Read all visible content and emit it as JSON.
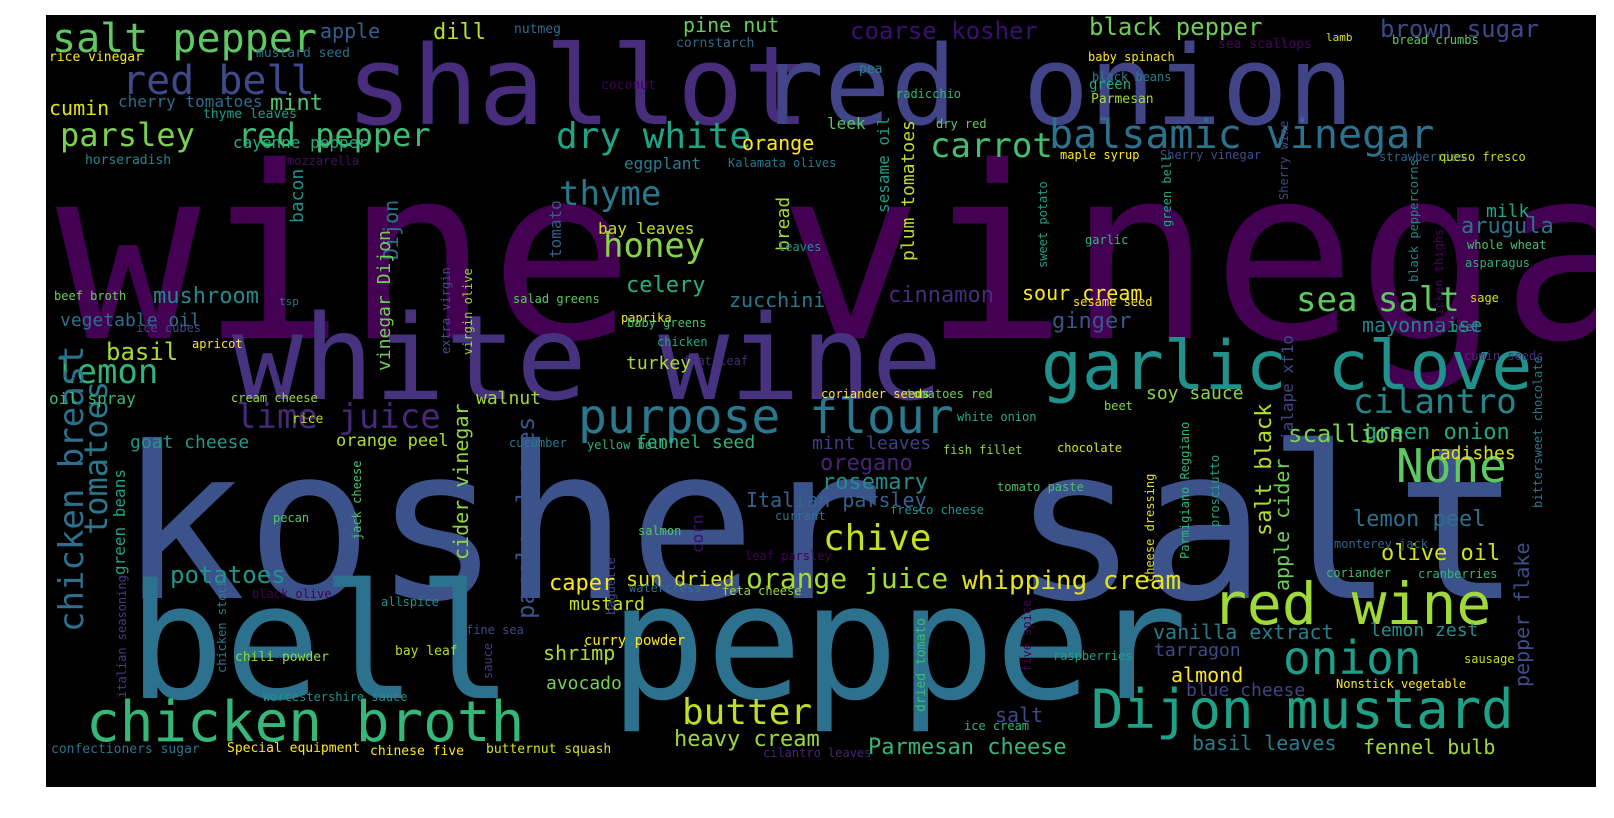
{
  "words": [
    {
      "t": "wine vinegar",
      "c": "#440154"
    },
    {
      "t": "kosher salt",
      "c": "#3b528b"
    },
    {
      "t": "bell pepper",
      "c": "#2c728e"
    },
    {
      "t": "white wine",
      "c": "#46327e"
    },
    {
      "t": "shallot",
      "c": "#472d7b"
    },
    {
      "t": "red onion",
      "c": "#414487"
    },
    {
      "t": "garlic clove",
      "c": "#21918c"
    },
    {
      "t": "red wine",
      "c": "#a0da39"
    },
    {
      "t": "chicken broth",
      "c": "#35b779"
    },
    {
      "t": "Dijon mustard",
      "c": "#1fa187"
    },
    {
      "t": "purpose flour",
      "c": "#2a788e"
    },
    {
      "t": "None",
      "c": "#5ec962"
    },
    {
      "t": "onion",
      "c": "#1f9e89"
    },
    {
      "t": "salt pepper",
      "c": "#5ec962"
    },
    {
      "t": "red bell",
      "c": "#3e4a89"
    },
    {
      "t": "balsamic vinegar",
      "c": "#2c728e"
    },
    {
      "t": "parsley",
      "c": "#7ad151"
    },
    {
      "t": "red pepper",
      "c": "#3fbc73"
    },
    {
      "t": "dry white",
      "c": "#20a486"
    },
    {
      "t": "butter",
      "c": "#bddf26"
    },
    {
      "t": "chive",
      "c": "#c2df23"
    },
    {
      "t": "lemon",
      "c": "#2fb47c"
    },
    {
      "t": "lime juice",
      "c": "#482878"
    },
    {
      "t": "sea salt",
      "c": "#5ec962"
    },
    {
      "t": "cilantro",
      "c": "#25858e"
    },
    {
      "t": "honey",
      "c": "#86d549"
    },
    {
      "t": "thyme",
      "c": "#2a788e"
    },
    {
      "t": "carrot",
      "c": "#44bf70"
    },
    {
      "t": "orange juice",
      "c": "#a5db36"
    },
    {
      "t": "whipping cream",
      "c": "#e5e419"
    },
    {
      "t": "heavy cream",
      "c": "#9bd93c"
    },
    {
      "t": "Parmesan cheese",
      "c": "#35b779"
    },
    {
      "t": "chicken breast",
      "c": "#2e6e8e"
    },
    {
      "t": "tomatoes",
      "c": "#29798e"
    },
    {
      "t": "green onion",
      "c": "#22a785"
    },
    {
      "t": "scallion",
      "c": "#7ad151"
    },
    {
      "t": "rosemary",
      "c": "#228d8d"
    },
    {
      "t": "lemon peel",
      "c": "#2d718e"
    },
    {
      "t": "potatoes",
      "c": "#1f958b"
    },
    {
      "t": "mushroom",
      "c": "#23898e"
    },
    {
      "t": "celery",
      "c": "#29af7f"
    },
    {
      "t": "cinnamon",
      "c": "#472c7a"
    },
    {
      "t": "sour cream",
      "c": "#fde725"
    },
    {
      "t": "basil",
      "c": "#a8db34"
    },
    {
      "t": "black pepper",
      "c": "#6ece58"
    },
    {
      "t": "coarse kosher",
      "c": "#3b0f70"
    },
    {
      "t": "brown sugar",
      "c": "#3e4989"
    },
    {
      "t": "parsley leaves",
      "c": "#3b528b"
    },
    {
      "t": "cider vinegar",
      "c": "#90d743"
    },
    {
      "t": "mint",
      "c": "#52c569"
    },
    {
      "t": "dill",
      "c": "#bade28"
    },
    {
      "t": "apple",
      "c": "#355f8d"
    },
    {
      "t": "pine nut",
      "c": "#63cb5f"
    },
    {
      "t": "cumin",
      "c": "#dde318"
    },
    {
      "t": "orange",
      "c": "#fde725"
    },
    {
      "t": "ginger",
      "c": "#39568c"
    },
    {
      "t": "oregano",
      "c": "#482475"
    },
    {
      "t": "mayonnaise",
      "c": "#26828e"
    },
    {
      "t": "arugula",
      "c": "#2c728e"
    },
    {
      "t": "olive oil",
      "c": "#d2e21b"
    },
    {
      "t": "caper",
      "c": "#fde725"
    },
    {
      "t": "sun dried",
      "c": "#dde318"
    },
    {
      "t": "zucchini",
      "c": "#2a788e"
    },
    {
      "t": "shrimp",
      "c": "#aadc32"
    },
    {
      "t": "avocado",
      "c": "#75d054"
    },
    {
      "t": "almond",
      "c": "#fde725"
    },
    {
      "t": "salt",
      "c": "#3e4989"
    },
    {
      "t": "basil leaves",
      "c": "#277f8e"
    },
    {
      "t": "fennel bulb",
      "c": "#a2da37"
    },
    {
      "t": "salt black",
      "c": "#b5de2b"
    },
    {
      "t": "apple cider",
      "c": "#6ccd5a"
    },
    {
      "t": "pepper flake",
      "c": "#3d4e8a"
    },
    {
      "t": "vanilla extract",
      "c": "#287d8e"
    },
    {
      "t": "lemon zest",
      "c": "#218f8d"
    },
    {
      "t": "tarragon",
      "c": "#3e4c8a"
    },
    {
      "t": "blue cheese",
      "c": "#414487"
    },
    {
      "t": "Italian parsley",
      "c": "#34618d"
    },
    {
      "t": "mint leaves",
      "c": "#433e85"
    },
    {
      "t": "fennel seed",
      "c": "#2db27d"
    },
    {
      "t": "goat cheese",
      "c": "#1f9a8a"
    },
    {
      "t": "orange peel",
      "c": "#b0dd2f"
    },
    {
      "t": "walnut",
      "c": "#9dd93b"
    },
    {
      "t": "turkey",
      "c": "#a8db34"
    },
    {
      "t": "soy sauce",
      "c": "#8bd646"
    },
    {
      "t": "radishes",
      "c": "#dde318"
    },
    {
      "t": "milk",
      "c": "#22a785"
    },
    {
      "t": "mustard",
      "c": "#c8e020"
    },
    {
      "t": "vegetable oil",
      "c": "#2d708e"
    },
    {
      "t": "oil spray",
      "c": "#3aba76"
    },
    {
      "t": "bay leaves",
      "c": "#c5e021"
    },
    {
      "t": "cayenne pepper",
      "c": "#29af7f"
    },
    {
      "t": "cherry tomatoes",
      "c": "#2e6e8e"
    },
    {
      "t": "eggplant",
      "c": "#277e8e"
    },
    {
      "t": "leek",
      "c": "#56c667"
    },
    {
      "t": "plum tomatoes",
      "c": "#c0df25"
    },
    {
      "t": "sesame oil",
      "c": "#1e9c89"
    },
    {
      "t": "bacon",
      "c": "#20938c"
    },
    {
      "t": "Dijon",
      "c": "#2c718e"
    },
    {
      "t": "vinegar Dijon",
      "c": "#70cf57"
    },
    {
      "t": "bread",
      "c": "#a5db36"
    },
    {
      "t": "green beans",
      "c": "#1fa287"
    },
    {
      "t": "corn",
      "c": "#3b0f70"
    },
    {
      "t": "jalape xf1o",
      "c": "#3f4788"
    },
    {
      "t": "tomato",
      "c": "#355f8d"
    },
    {
      "t": "rice vinegar",
      "c": "#fde725"
    },
    {
      "t": "mustard seed",
      "c": "#2c728e"
    },
    {
      "t": "nutmeg",
      "c": "#2f6c8e"
    },
    {
      "t": "cornstarch",
      "c": "#30698e"
    },
    {
      "t": "coconut",
      "c": "#440154"
    },
    {
      "t": "pea",
      "c": "#25848e"
    },
    {
      "t": "radicchio",
      "c": "#34b679"
    },
    {
      "t": "thyme leaves",
      "c": "#1f9e89"
    },
    {
      "t": "horseradish",
      "c": "#23888e"
    },
    {
      "t": "mozzarella",
      "c": "#470e61"
    },
    {
      "t": "Kalamata olives",
      "c": "#2a768e"
    },
    {
      "t": "dry red",
      "c": "#60ca60"
    },
    {
      "t": "maple syrup",
      "c": "#fde725"
    },
    {
      "t": "Sherry vinegar",
      "c": "#3d4e8a"
    },
    {
      "t": "sea scallops",
      "c": "#46075a"
    },
    {
      "t": "baby spinach",
      "c": "#fde725"
    },
    {
      "t": "black beans",
      "c": "#277f8e"
    },
    {
      "t": "green",
      "c": "#25ac82"
    },
    {
      "t": "Parmesan",
      "c": "#a0da39"
    },
    {
      "t": "lamb",
      "c": "#d8e219"
    },
    {
      "t": "bread crumbs",
      "c": "#5ec962"
    },
    {
      "t": "strawberries",
      "c": "#32658e"
    },
    {
      "t": "queso fresco",
      "c": "#bddf26"
    },
    {
      "t": "whole wheat",
      "c": "#4ac16d"
    },
    {
      "t": "asparagus",
      "c": "#2ab07f"
    },
    {
      "t": "sage",
      "c": "#d8e219"
    },
    {
      "t": "beef",
      "c": "#1f988b"
    },
    {
      "t": "cumin seeds",
      "c": "#472a7a"
    },
    {
      "t": "Sherry wine",
      "c": "#404688"
    },
    {
      "t": "green bell",
      "c": "#23a983"
    },
    {
      "t": "sweet potato",
      "c": "#1f9e89"
    },
    {
      "t": "garlic",
      "c": "#37b878"
    },
    {
      "t": "black peppercorns",
      "c": "#24868e"
    },
    {
      "t": "bittersweet chocolate",
      "c": "#2a768e"
    },
    {
      "t": "cranberries",
      "c": "#31b57b"
    },
    {
      "t": "coriander",
      "c": "#3dbc74"
    },
    {
      "t": "sausage",
      "c": "#c2df23"
    },
    {
      "t": "Nonstick vegetable",
      "c": "#fde725"
    },
    {
      "t": "leaves",
      "c": "#21918c"
    },
    {
      "t": "sesame seed",
      "c": "#fde725"
    },
    {
      "t": "salad greens",
      "c": "#5ec962"
    },
    {
      "t": "paprika",
      "c": "#fde725"
    },
    {
      "t": "baby greens",
      "c": "#48c16e"
    },
    {
      "t": "chicken",
      "c": "#24aa83"
    },
    {
      "t": "tsp",
      "c": "#2a768e"
    },
    {
      "t": "beef broth",
      "c": "#6ece58"
    },
    {
      "t": "ice cubes",
      "c": "#3e4a89"
    },
    {
      "t": "apricot",
      "c": "#fde725"
    },
    {
      "t": "extra virgin",
      "c": "#3b528b"
    },
    {
      "t": "virgin olive",
      "c": "#9bd93c"
    },
    {
      "t": "flat leaf",
      "c": "#472c7a"
    },
    {
      "t": "coriander seeds",
      "c": "#fde725"
    },
    {
      "t": "tomatoes red",
      "c": "#6ccd5a"
    },
    {
      "t": "white onion",
      "c": "#26ad81"
    },
    {
      "t": "beet",
      "c": "#86d549"
    },
    {
      "t": "fish fillet",
      "c": "#8bd646"
    },
    {
      "t": "chocolate",
      "c": "#dde318"
    },
    {
      "t": "cream cheese",
      "c": "#a0da39"
    },
    {
      "t": "rice",
      "c": "#c2df23"
    },
    {
      "t": "cucumber",
      "c": "#2a778e"
    },
    {
      "t": "yellow bell",
      "c": "#2fb47c"
    },
    {
      "t": "tomato paste",
      "c": "#48c16e"
    },
    {
      "t": "monterey jack",
      "c": "#32658e"
    },
    {
      "t": "chicken thighs",
      "c": "#450559"
    },
    {
      "t": "pecan",
      "c": "#56c667"
    },
    {
      "t": "jack cheese",
      "c": "#4ac16d"
    },
    {
      "t": "salmon",
      "c": "#50c46a"
    },
    {
      "t": "baguette",
      "c": "#3e4989"
    },
    {
      "t": "currant",
      "c": "#2a768e"
    },
    {
      "t": "fresco cheese",
      "c": "#1f958b"
    },
    {
      "t": "leaf parsley",
      "c": "#440154"
    },
    {
      "t": "cheese dressing",
      "c": "#dde318"
    },
    {
      "t": "Parmigiano Reggiano",
      "c": "#31b57b"
    },
    {
      "t": "prosciutto",
      "c": "#20a386"
    },
    {
      "t": "dried tomato",
      "c": "#3dbc74"
    },
    {
      "t": "italian seasoning",
      "c": "#433e85"
    },
    {
      "t": "chicken stock",
      "c": "#277e8e"
    },
    {
      "t": "black olive",
      "c": "#440154"
    },
    {
      "t": "allspice",
      "c": "#21918c"
    },
    {
      "t": "watercress",
      "c": "#2c728e"
    },
    {
      "t": "feta cheese",
      "c": "#9dd93b"
    },
    {
      "t": "fine sea",
      "c": "#3e4a89"
    },
    {
      "t": "curry powder",
      "c": "#fde725"
    },
    {
      "t": "chili powder",
      "c": "#90d743"
    },
    {
      "t": "bay leaf",
      "c": "#bade28"
    },
    {
      "t": "sauce",
      "c": "#433e85"
    },
    {
      "t": "five spice",
      "c": "#440154"
    },
    {
      "t": "raspberries",
      "c": "#1fa187"
    },
    {
      "t": "ice cream",
      "c": "#35b779"
    },
    {
      "t": "Worcestershire sauce",
      "c": "#20938c"
    },
    {
      "t": "confectioners sugar",
      "c": "#2b758e"
    },
    {
      "t": "Special equipment",
      "c": "#fde725"
    },
    {
      "t": "chinese five",
      "c": "#fde725"
    },
    {
      "t": "butternut squash",
      "c": "#d8e219"
    },
    {
      "t": "cilantro leaves",
      "c": "#482475"
    }
  ]
}
